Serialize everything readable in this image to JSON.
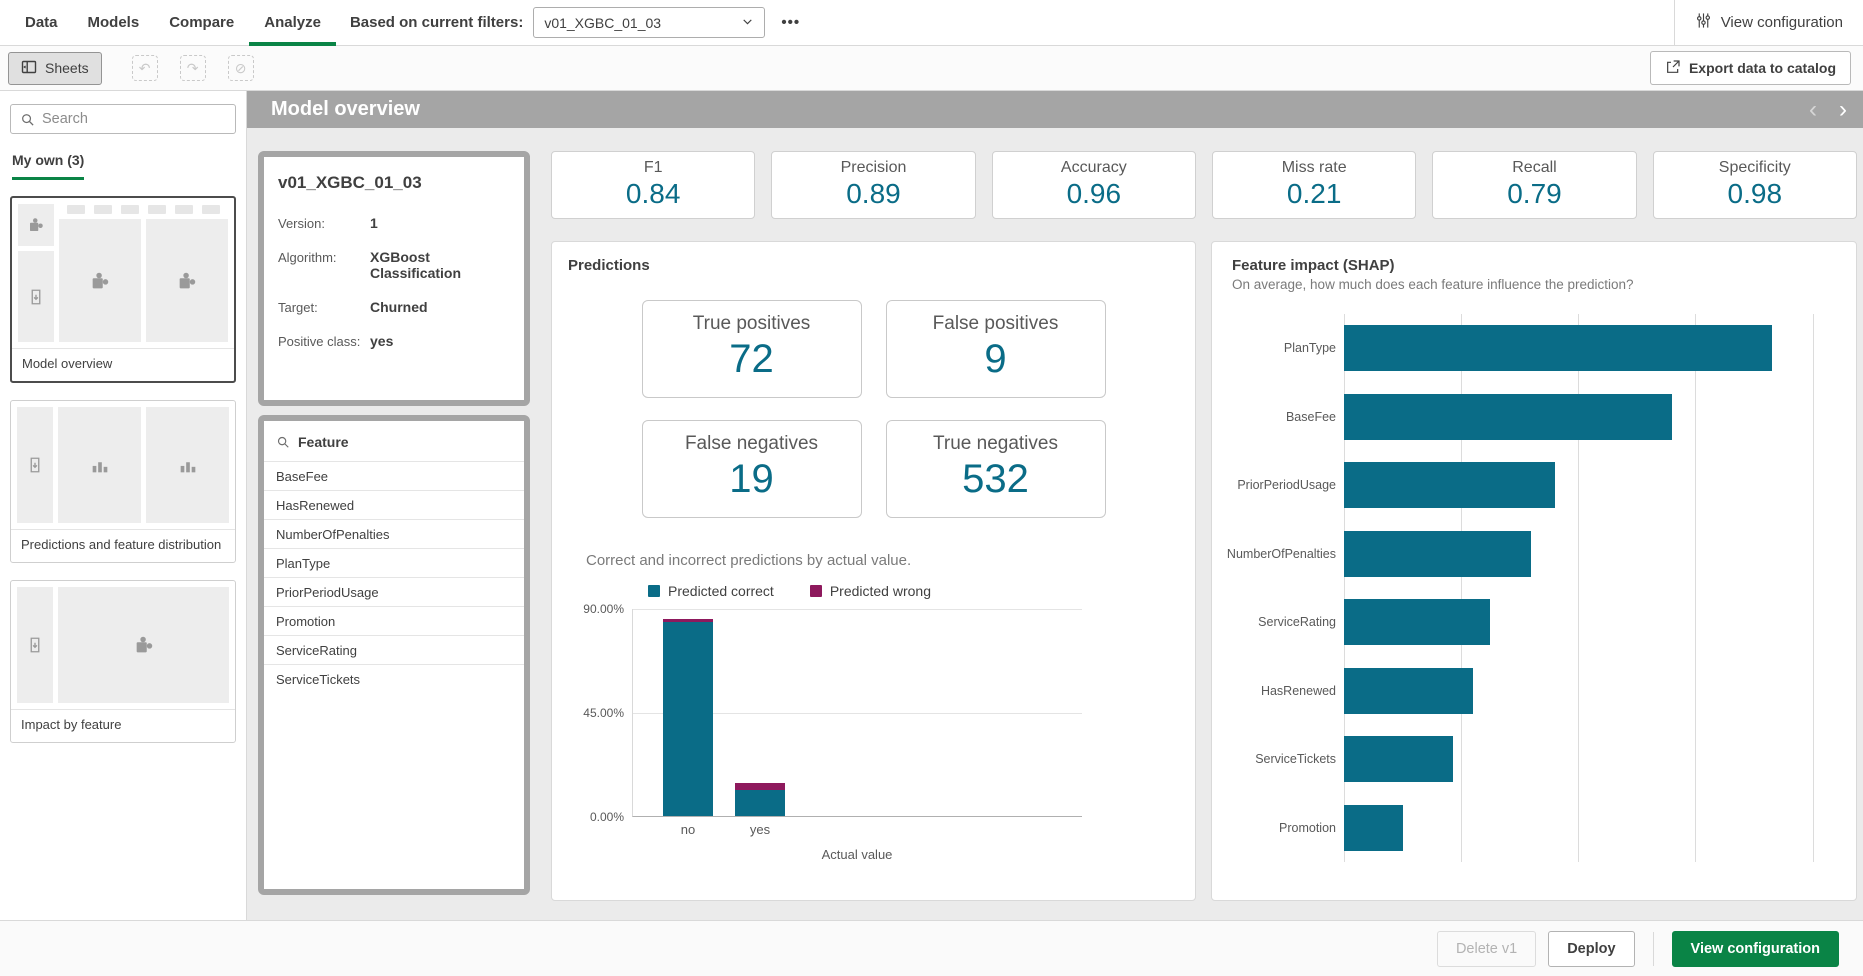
{
  "topnav": {
    "tabs": [
      {
        "label": "Data"
      },
      {
        "label": "Models"
      },
      {
        "label": "Compare"
      },
      {
        "label": "Analyze",
        "active": true
      }
    ],
    "filter_label": "Based on current filters:",
    "filter_value": "v01_XGBC_01_03",
    "view_configuration_label": "View configuration"
  },
  "toolbar": {
    "sheets_label": "Sheets",
    "export_label": "Export data to catalog"
  },
  "sidebar": {
    "search_placeholder": "Search",
    "section_label": "My own (3)",
    "sheets": [
      {
        "label": "Model overview",
        "selected": true
      },
      {
        "label": "Predictions and feature distribution",
        "selected": false
      },
      {
        "label": "Impact by feature",
        "selected": false
      }
    ]
  },
  "titlebar": {
    "title": "Model overview"
  },
  "icons": {
    "more": "•••",
    "prev": "‹",
    "next": "›",
    "undo": "↶",
    "redo": "↷",
    "clear": "⊘"
  },
  "model_card": {
    "title": "v01_XGBC_01_03",
    "rows": [
      {
        "label": "Version:",
        "value": "1"
      },
      {
        "label": "Algorithm:",
        "value": "XGBoost Classification"
      },
      {
        "label": "Target:",
        "value": "Churned"
      },
      {
        "label": "Positive class:",
        "value": "yes"
      }
    ]
  },
  "feature_list": {
    "header": "Feature",
    "items": [
      "BaseFee",
      "HasRenewed",
      "NumberOfPenalties",
      "PlanType",
      "PriorPeriodUsage",
      "Promotion",
      "ServiceRating",
      "ServiceTickets"
    ]
  },
  "kpis": [
    {
      "label": "F1",
      "value": "0.84"
    },
    {
      "label": "Precision",
      "value": "0.89"
    },
    {
      "label": "Accuracy",
      "value": "0.96"
    },
    {
      "label": "Miss rate",
      "value": "0.21"
    },
    {
      "label": "Recall",
      "value": "0.79"
    },
    {
      "label": "Specificity",
      "value": "0.98"
    }
  ],
  "predictions": {
    "title": "Predictions",
    "metrics": [
      {
        "label": "True positives",
        "value": "72"
      },
      {
        "label": "False positives",
        "value": "9"
      },
      {
        "label": "False negatives",
        "value": "19"
      },
      {
        "label": "True negatives",
        "value": "532"
      }
    ],
    "chart_caption": "Correct and incorrect predictions by actual value."
  },
  "shap": {
    "title": "Feature impact (SHAP)",
    "subtitle": "On average, how much does each feature influence the prediction?"
  },
  "footer": {
    "delete_label": "Delete v1",
    "deploy_label": "Deploy",
    "view_configuration_label": "View configuration"
  },
  "colors": {
    "teal": "#0a6c87",
    "magenta": "#8e195d",
    "green": "#0a8446",
    "header_gray": "#a5a5a5"
  },
  "chart_data": [
    {
      "name": "predictions_by_actual",
      "type": "bar",
      "stacked": true,
      "categories": [
        "no",
        "yes"
      ],
      "series": [
        {
          "name": "Predicted correct",
          "color": "#0a6c87",
          "values": [
            84.2,
            11.4
          ]
        },
        {
          "name": "Predicted wrong",
          "color": "#8e195d",
          "values": [
            1.4,
            3.0
          ]
        }
      ],
      "title": "Correct and incorrect predictions by actual value.",
      "xlabel": "Actual value",
      "ylabel": "",
      "yticks": [
        "90.00%",
        "45.00%",
        "0.00%"
      ],
      "ylim": [
        0,
        90
      ],
      "grid": true,
      "legend_position": "top"
    },
    {
      "name": "feature_impact_shap",
      "type": "bar",
      "orientation": "horizontal",
      "categories": [
        "PlanType",
        "BaseFee",
        "PriorPeriodUsage",
        "NumberOfPenalties",
        "ServiceRating",
        "HasRenewed",
        "ServiceTickets",
        "Promotion"
      ],
      "values": [
        0.365,
        0.28,
        0.18,
        0.16,
        0.125,
        0.11,
        0.093,
        0.05
      ],
      "bar_color": "#0a6c87",
      "title": "Feature impact (SHAP)",
      "xlabel": "",
      "ylabel": "",
      "xlim": [
        0,
        0.42
      ],
      "gridlines": [
        0,
        0.1,
        0.2,
        0.3,
        0.4
      ],
      "grid": true,
      "legend_position": "none"
    }
  ]
}
